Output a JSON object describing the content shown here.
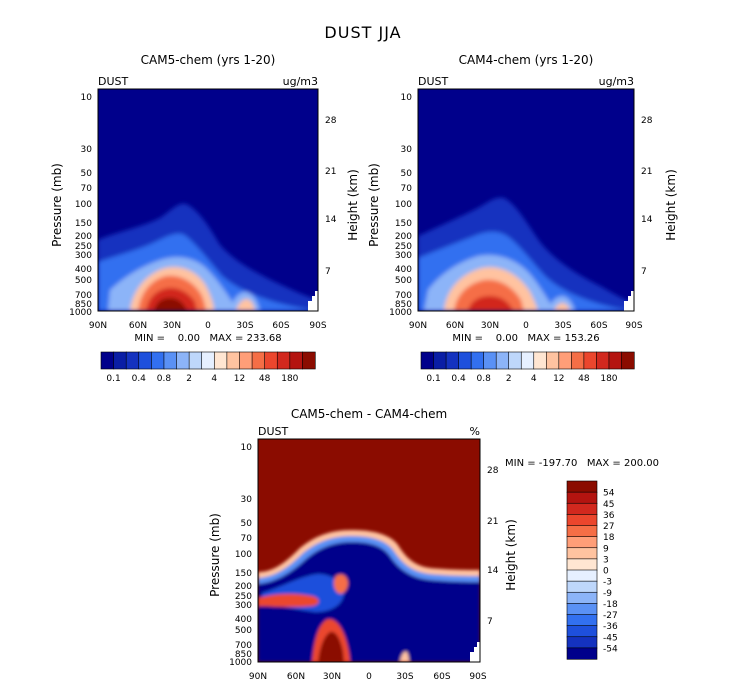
{
  "figure_title": "DUST JJA",
  "colors": {
    "background_high": "#8b0c00",
    "background_low": "#00008b"
  },
  "chart_data": [
    {
      "type": "heatmap",
      "id": "cam5",
      "title": "CAM5-chem (yrs 1-20)",
      "corner_left": "DUST",
      "corner_right": "ug/m3",
      "xlabel": "",
      "ylabel": "Pressure (mb)",
      "ylabel_right": "Height (km)",
      "xticks": [
        "90N",
        "60N",
        "30N",
        "0",
        "30S",
        "60S",
        "90S"
      ],
      "yticks": [
        "10",
        "30",
        "50",
        "70",
        "100",
        "150",
        "200",
        "250",
        "300",
        "400",
        "500",
        "700",
        "850",
        "1000"
      ],
      "yticks_right": [
        "28",
        "21",
        "14",
        "7"
      ],
      "stats": "MIN =    0.00   MAX = 233.68",
      "min": 0.0,
      "max": 233.68,
      "colorbar": {
        "labels": [
          "0.1",
          "0.4",
          "0.8",
          "2",
          "4",
          "12",
          "48",
          "180"
        ],
        "colors": [
          "#00008b",
          "#0a1ea5",
          "#1432bf",
          "#1e50dc",
          "#3270f0",
          "#5a91f5",
          "#8cb4f8",
          "#bed7fb",
          "#e6f0ff",
          "#ffe6d2",
          "#ffc3a0",
          "#ff9e78",
          "#f56e46",
          "#eb462d",
          "#d2281e",
          "#b41410",
          "#8b0c00"
        ]
      }
    },
    {
      "type": "heatmap",
      "id": "cam4",
      "title": "CAM4-chem (yrs 1-20)",
      "corner_left": "DUST",
      "corner_right": "ug/m3",
      "xlabel": "",
      "ylabel": "Pressure (mb)",
      "ylabel_right": "Height (km)",
      "xticks": [
        "90N",
        "60N",
        "30N",
        "0",
        "30S",
        "60S",
        "90S"
      ],
      "yticks": [
        "10",
        "30",
        "50",
        "70",
        "100",
        "150",
        "200",
        "250",
        "300",
        "400",
        "500",
        "700",
        "850",
        "1000"
      ],
      "yticks_right": [
        "28",
        "21",
        "14",
        "7"
      ],
      "stats": "MIN =    0.00   MAX = 153.26",
      "min": 0.0,
      "max": 153.26,
      "colorbar": {
        "labels": [
          "0.1",
          "0.4",
          "0.8",
          "2",
          "4",
          "12",
          "48",
          "180"
        ],
        "colors": [
          "#00008b",
          "#0a1ea5",
          "#1432bf",
          "#1e50dc",
          "#3270f0",
          "#5a91f5",
          "#8cb4f8",
          "#bed7fb",
          "#e6f0ff",
          "#ffe6d2",
          "#ffc3a0",
          "#ff9e78",
          "#f56e46",
          "#eb462d",
          "#d2281e",
          "#b41410",
          "#8b0c00"
        ]
      }
    },
    {
      "type": "heatmap",
      "id": "diff",
      "title": "CAM5-chem - CAM4-chem",
      "corner_left": "DUST",
      "corner_right": "%",
      "xlabel": "",
      "ylabel": "Pressure (mb)",
      "ylabel_right": "Height (km)",
      "xticks": [
        "90N",
        "60N",
        "30N",
        "0",
        "30S",
        "60S",
        "90S"
      ],
      "yticks": [
        "10",
        "30",
        "50",
        "70",
        "100",
        "150",
        "200",
        "250",
        "300",
        "400",
        "500",
        "700",
        "850",
        "1000"
      ],
      "yticks_right": [
        "28",
        "21",
        "14",
        "7"
      ],
      "stats": "MIN = -197.70   MAX = 200.00",
      "min": -197.7,
      "max": 200.0,
      "colorbar": {
        "labels": [
          "54",
          "45",
          "36",
          "27",
          "18",
          "9",
          "3",
          "0",
          "-3",
          "-9",
          "-18",
          "-27",
          "-36",
          "-45",
          "-54"
        ],
        "colors": [
          "#8b0c00",
          "#b41410",
          "#d2281e",
          "#eb462d",
          "#f56e46",
          "#ff9e78",
          "#ffc3a0",
          "#ffe6d2",
          "#e6f0ff",
          "#bed7fb",
          "#8cb4f8",
          "#5a91f5",
          "#3270f0",
          "#1e50dc",
          "#1432bf",
          "#00008b"
        ]
      }
    }
  ]
}
